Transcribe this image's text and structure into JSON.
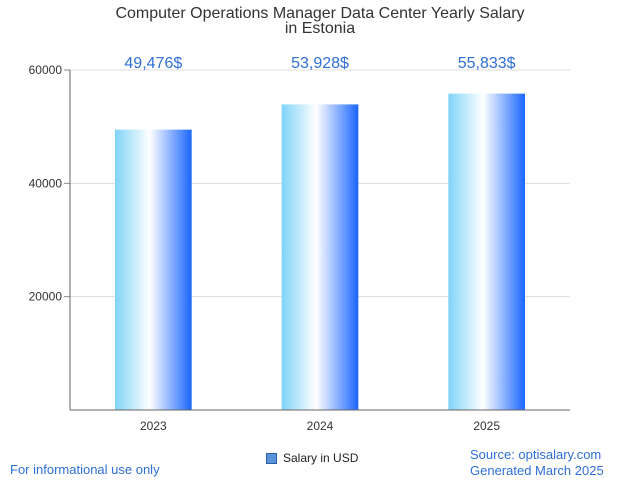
{
  "chart_data": {
    "type": "bar",
    "title": [
      "Computer Operations Manager Data Center Yearly Salary",
      "in Estonia"
    ],
    "categories": [
      "2023",
      "2024",
      "2025"
    ],
    "series": [
      {
        "name": "Salary in USD",
        "values": [
          49476,
          53928,
          55833
        ]
      }
    ],
    "value_labels": [
      "49,476$",
      "53,928$",
      "55,833$"
    ],
    "yticks": [
      20000,
      40000,
      60000
    ],
    "ytick_labels": [
      "20000",
      "40000",
      "60000"
    ],
    "ylim": [
      0,
      60000
    ],
    "grid": true,
    "legend_position": "bottom-center",
    "bar_gradient": [
      "#7fd3f7",
      "#ffffff",
      "#1a66ff"
    ]
  },
  "legend": {
    "label": "Salary in USD"
  },
  "footer": {
    "disclaimer": "For informational use only",
    "source": "Source: optisalary.com",
    "generated": "Generated March 2025"
  }
}
